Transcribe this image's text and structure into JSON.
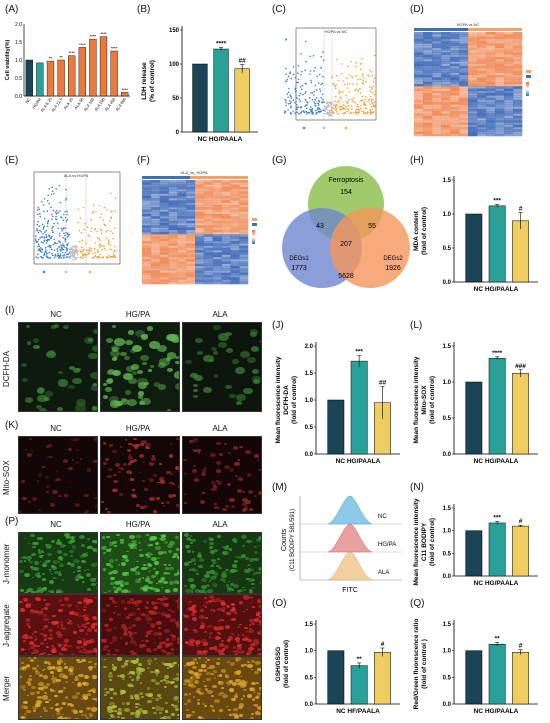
{
  "panel_labels": [
    "(A)",
    "(B)",
    "(C)",
    "(D)",
    "(E)",
    "(F)",
    "(G)",
    "(H)",
    "(I)",
    "(J)",
    "(K)",
    "(L)",
    "(M)",
    "(N)",
    "(O)",
    "(P)",
    "(Q)"
  ],
  "colors": {
    "nc": "#1b4457",
    "hg": "#2aa198",
    "ala": "#f0cd60",
    "venn_ferro": "#9bc763",
    "venn_degs1": "#6f86cf",
    "venn_degs2": "#f5955a",
    "panel_a": "#e87a3e",
    "volcano_blue": "#3d7fc4",
    "volcano_orange": "#f0a030",
    "heat_blue": "#3b6fb6",
    "heat_orange": "#f59f6b"
  },
  "panel_a": {
    "ylabel": "Cell viability(%)",
    "xticks": [
      "NC",
      "HG/PA",
      "ALA 6.25",
      "ALA 12.5",
      "ALA 25",
      "ALA 50",
      "ALA 100",
      "ALA 200",
      "ALA 400",
      "ALA 800"
    ],
    "yticks": [
      "0.0",
      "0.5",
      "1.0",
      "1.5",
      "2.0"
    ],
    "sig": [
      "",
      "",
      "**",
      "**",
      "****",
      "****",
      "****",
      "****",
      "****",
      "****"
    ]
  },
  "panel_b": {
    "ylabel_1": "LDH release",
    "ylabel_2": "(% of control)",
    "xlabel": "NC HG/PAALA",
    "sig_hg": "****",
    "sig_ala": "##",
    "yticks": [
      "0",
      "50",
      "100",
      "150"
    ]
  },
  "panel_c": {
    "title": "HGPA vs NC"
  },
  "panel_d": {
    "title": "HGPA vs NC"
  },
  "panel_e": {
    "title": "ALA vs HGPA"
  },
  "panel_f": {
    "title": "ALA_vs_HGPA"
  },
  "panel_g": {
    "sets": [
      "Ferroptosis",
      "DEGs1",
      "DEGs2"
    ],
    "counts": {
      "ferro_only": "154",
      "degs1_only": "1773",
      "degs2_only": "1926",
      "ferro_degs1": "43",
      "ferro_degs2": "55",
      "degs1_degs2": "5628",
      "all": "207"
    }
  },
  "panel_h": {
    "ylabel_1": "MDA content",
    "ylabel_2": "(fold of control)",
    "xlabel": "NC HG/PAALA",
    "sig_hg": "***",
    "sig_ala": "#",
    "yticks": [
      "0.0",
      "0.5",
      "1.0",
      "1.5"
    ]
  },
  "panel_i": {
    "cols": [
      "NC",
      "HG/PA",
      "ALA"
    ],
    "row": "DCFH-DA"
  },
  "panel_j": {
    "ylabel_1": "Mean fluorescence intensity",
    "ylabel_2": "DCFH-DA",
    "ylabel_3": "(fold of control)",
    "xlabel": "NC HG/PAALA",
    "sig_hg": "***",
    "sig_ala": "##",
    "yticks": [
      "0.0",
      "0.5",
      "1.0",
      "1.5",
      "2.0"
    ]
  },
  "panel_k": {
    "cols": [
      "NC",
      "HG/PA",
      "ALA"
    ],
    "row": "Mito-SOX"
  },
  "panel_l": {
    "ylabel_1": "Mean fluorescence intensity",
    "ylabel_2": "Mito-SOX",
    "ylabel_3": "(fold of control)",
    "xlabel": "NC HG/PAALA",
    "sig_hg": "****",
    "sig_ala": "###",
    "yticks": [
      "0.0",
      "0.5",
      "1.0",
      "1.5"
    ]
  },
  "panel_m": {
    "ylabel_1": "Counts",
    "ylabel_2": "(C11 BODIPY 581/591)",
    "xlabel": "FITC",
    "groups": [
      "NC",
      "HG/PA",
      "ALA"
    ]
  },
  "panel_n": {
    "ylabel_1": "Mean fluorescence intensity",
    "ylabel_2": "C11 BODIPY",
    "ylabel_3": "(fold of control)",
    "xlabel": "NC HG/PAALA",
    "sig_hg": "***",
    "sig_ala": "#",
    "yticks": [
      "0.0",
      "0.5",
      "1.0",
      "1.5"
    ]
  },
  "panel_o": {
    "ylabel_1": "GSH/GSSG",
    "ylabel_2": "(fold of control)",
    "xlabel": "NC HF/PAALA",
    "sig_hg": "**",
    "sig_ala": "#",
    "yticks": [
      "0.0",
      "0.5",
      "1.0",
      "1.5"
    ]
  },
  "panel_p": {
    "cols": [
      "NC",
      "HG/PA",
      "ALA"
    ],
    "rows": [
      "J-monomer",
      "J-aggregate",
      "Merger"
    ]
  },
  "panel_q": {
    "ylabel_1": "Red/Green fluorescence ratio",
    "ylabel_2": "(fold of control )",
    "xlabel": "NC HG/PAALA",
    "sig_hg": "**",
    "sig_ala": "#",
    "yticks": [
      "0.0",
      "0.5",
      "1.0",
      "1.5"
    ]
  },
  "chart_data": [
    {
      "id": "A",
      "type": "bar",
      "categories": [
        "NC",
        "HG/PA",
        "ALA 6.25",
        "ALA 12.5",
        "ALA 25",
        "ALA 50",
        "ALA 100",
        "ALA 200",
        "ALA 400",
        "ALA 800"
      ],
      "values": [
        1.0,
        0.92,
        0.97,
        1.0,
        1.12,
        1.35,
        1.58,
        1.65,
        1.25,
        0.1
      ],
      "ylim": [
        0,
        2.0
      ],
      "ylabel": "Cell viability(%)"
    },
    {
      "id": "B",
      "type": "bar",
      "categories": [
        "NC",
        "HG/PA",
        "ALA"
      ],
      "values": [
        100,
        122,
        93
      ],
      "errors": [
        0,
        2,
        6
      ],
      "ylim": [
        0,
        150
      ],
      "ylabel": "LDH release (% of control)"
    },
    {
      "id": "H",
      "type": "bar",
      "categories": [
        "NC",
        "HG/PA",
        "ALA"
      ],
      "values": [
        1.0,
        1.12,
        0.9
      ],
      "errors": [
        0,
        0.02,
        0.12
      ],
      "ylim": [
        0,
        1.5
      ],
      "ylabel": "MDA content (fold of control)"
    },
    {
      "id": "J",
      "type": "bar",
      "categories": [
        "NC",
        "HG/PA",
        "ALA"
      ],
      "values": [
        1.0,
        1.72,
        0.95
      ],
      "errors": [
        0,
        0.1,
        0.3
      ],
      "ylim": [
        0,
        2.0
      ],
      "ylabel": "Mean fluorescence intensity DCFH-DA (fold of control)"
    },
    {
      "id": "L",
      "type": "bar",
      "categories": [
        "NC",
        "HG/PA",
        "ALA"
      ],
      "values": [
        1.0,
        1.33,
        1.12
      ],
      "errors": [
        0,
        0.02,
        0.05
      ],
      "ylim": [
        0,
        1.5
      ],
      "ylabel": "Mean fluorescence intensity Mito-SOX (fold of control)"
    },
    {
      "id": "N",
      "type": "bar",
      "categories": [
        "NC",
        "HG/PA",
        "ALA"
      ],
      "values": [
        1.0,
        1.17,
        1.1
      ],
      "errors": [
        0,
        0.03,
        0.02
      ],
      "ylim": [
        0,
        1.5
      ],
      "ylabel": "Mean fluorescence intensity C11 BODIPY (fold of control)"
    },
    {
      "id": "O",
      "type": "bar",
      "categories": [
        "NC",
        "HF/PA",
        "ALA"
      ],
      "values": [
        1.0,
        0.72,
        0.97
      ],
      "errors": [
        0,
        0.05,
        0.08
      ],
      "ylim": [
        0,
        1.5
      ],
      "ylabel": "GSH/GSSG (fold of control)"
    },
    {
      "id": "Q",
      "type": "bar",
      "categories": [
        "NC",
        "HG/PA",
        "ALA"
      ],
      "values": [
        1.0,
        1.12,
        0.97
      ],
      "errors": [
        0,
        0.03,
        0.05
      ],
      "ylim": [
        0,
        1.5
      ],
      "ylabel": "Red/Green fluorescence ratio (fold of control)"
    }
  ]
}
